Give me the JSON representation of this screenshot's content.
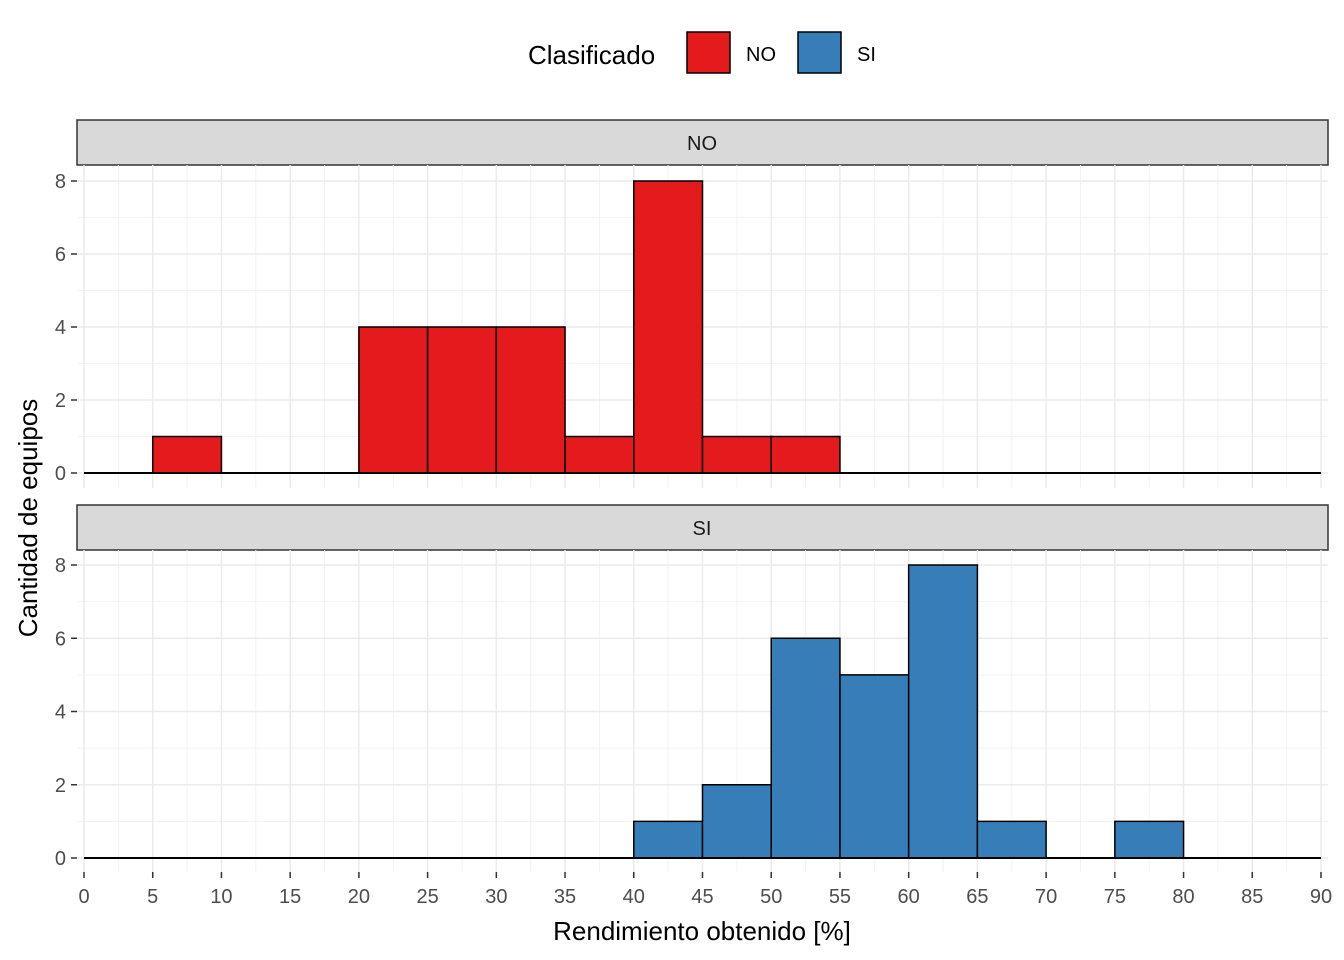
{
  "chart_data": {
    "type": "bar",
    "subtype": "faceted-histogram",
    "xlabel": "Rendimiento obtenido [%]",
    "ylabel": "Cantidad de equipos",
    "xlim": [
      0,
      90
    ],
    "ylim": [
      0,
      8
    ],
    "x_ticks": [
      "0",
      "5",
      "10",
      "15",
      "20",
      "25",
      "30",
      "35",
      "40",
      "45",
      "50",
      "55",
      "60",
      "65",
      "70",
      "75",
      "80",
      "85",
      "90"
    ],
    "y_ticks": [
      "0",
      "2",
      "4",
      "6",
      "8"
    ],
    "grid": true,
    "bin_width": 5,
    "legend": {
      "title": "Clasificado",
      "position": "top",
      "entries": [
        {
          "label": "NO",
          "color": "#E41A1C"
        },
        {
          "label": "SI",
          "color": "#377EB8"
        }
      ]
    },
    "facets": [
      {
        "label": "NO",
        "color": "#E41A1C",
        "bins": [
          {
            "x0": 5,
            "x1": 10,
            "count": 1
          },
          {
            "x0": 20,
            "x1": 25,
            "count": 4
          },
          {
            "x0": 25,
            "x1": 30,
            "count": 4
          },
          {
            "x0": 30,
            "x1": 35,
            "count": 4
          },
          {
            "x0": 35,
            "x1": 40,
            "count": 1
          },
          {
            "x0": 40,
            "x1": 45,
            "count": 8
          },
          {
            "x0": 45,
            "x1": 50,
            "count": 1
          },
          {
            "x0": 50,
            "x1": 55,
            "count": 1
          }
        ]
      },
      {
        "label": "SI",
        "color": "#377EB8",
        "bins": [
          {
            "x0": 40,
            "x1": 45,
            "count": 1
          },
          {
            "x0": 45,
            "x1": 50,
            "count": 2
          },
          {
            "x0": 50,
            "x1": 55,
            "count": 6
          },
          {
            "x0": 55,
            "x1": 60,
            "count": 5
          },
          {
            "x0": 60,
            "x1": 65,
            "count": 8
          },
          {
            "x0": 65,
            "x1": 70,
            "count": 1
          },
          {
            "x0": 75,
            "x1": 80,
            "count": 1
          }
        ]
      }
    ]
  }
}
